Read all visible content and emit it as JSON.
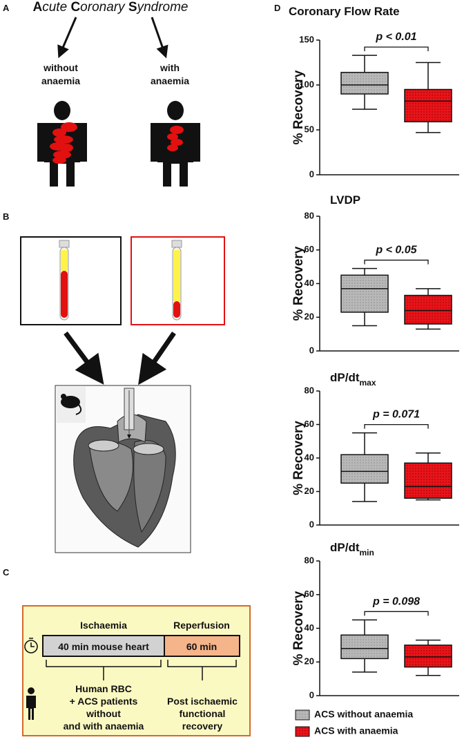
{
  "panel_labels": [
    "A",
    "B",
    "C",
    "D"
  ],
  "panel_a": {
    "title_segments": [
      "A",
      "cute ",
      "C",
      "oronary ",
      "S",
      "yndrome"
    ],
    "groups": [
      [
        "without",
        "anaemia"
      ],
      [
        "with",
        "anaemia"
      ]
    ]
  },
  "panel_c": {
    "phases": [
      "Ischaemia",
      "Reperfusion"
    ],
    "durations": [
      "40 min mouse heart",
      "60 min"
    ],
    "notes": [
      [
        "Human RBC",
        "+ ACS patients",
        "without",
        "and with anaemia"
      ],
      [
        "Post ischaemic",
        "functional",
        "recovery"
      ]
    ]
  },
  "legend": [
    {
      "name": "ACS without anaemia",
      "color": "#b8b8b8"
    },
    {
      "name": "ACS with anaemia",
      "color": "#e8141a"
    }
  ],
  "chart_data": [
    {
      "type": "box",
      "title": "Coronary Flow Rate",
      "ylabel": "% Recovery",
      "ylim": [
        0,
        150
      ],
      "yticks": [
        0,
        50,
        100,
        150
      ],
      "annotation": "p < 0.01",
      "boxes": [
        {
          "min": 73,
          "q1": 90,
          "median": 100,
          "q3": 114,
          "max": 133
        },
        {
          "min": 47,
          "q1": 59,
          "median": 82,
          "q3": 95,
          "max": 125
        }
      ]
    },
    {
      "type": "box",
      "title": "LVDP",
      "ylabel": "% Recovery",
      "ylim": [
        0,
        80
      ],
      "yticks": [
        0,
        20,
        40,
        60,
        80
      ],
      "annotation": "p < 0.05",
      "boxes": [
        {
          "min": 15,
          "q1": 23,
          "median": 37,
          "q3": 45,
          "max": 49
        },
        {
          "min": 13,
          "q1": 16,
          "median": 24,
          "q3": 33,
          "max": 37
        }
      ]
    },
    {
      "type": "box",
      "title": "dP/dt",
      "title_subscript": "max",
      "ylabel": "% Recovery",
      "ylim": [
        0,
        80
      ],
      "yticks": [
        0,
        20,
        40,
        60,
        80
      ],
      "annotation": "p = 0.071",
      "boxes": [
        {
          "min": 14,
          "q1": 25,
          "median": 32,
          "q3": 42,
          "max": 55
        },
        {
          "min": 15,
          "q1": 16,
          "median": 23,
          "q3": 37,
          "max": 43
        }
      ]
    },
    {
      "type": "box",
      "title": "dP/dt",
      "title_subscript": "min",
      "ylabel": "% Recovery",
      "ylim": [
        0,
        80
      ],
      "yticks": [
        0,
        20,
        40,
        60,
        80
      ],
      "annotation": "p = 0.098",
      "boxes": [
        {
          "min": 14,
          "q1": 22,
          "median": 28,
          "q3": 36,
          "max": 45
        },
        {
          "min": 12,
          "q1": 17,
          "median": 23,
          "q3": 30,
          "max": 33
        }
      ]
    }
  ]
}
